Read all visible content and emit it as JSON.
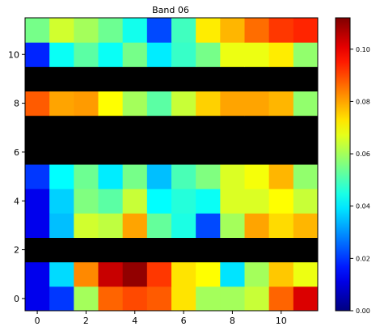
{
  "chart_data": {
    "type": "heatmap",
    "title": "Band 06",
    "xlabel": "",
    "ylabel": "",
    "colormap": "jet",
    "origin": "lower",
    "grid": false,
    "x_ticks": [
      0,
      2,
      4,
      6,
      8,
      10
    ],
    "y_ticks": [
      0,
      2,
      4,
      6,
      8,
      10
    ],
    "colorbar": {
      "vmin": 0.0,
      "vmax": 0.112,
      "ticks": [
        0.0,
        0.02,
        0.04,
        0.06,
        0.08,
        0.1
      ],
      "tick_labels": [
        "0.00",
        "0.02",
        "0.04",
        "0.06",
        "0.08",
        "0.10"
      ]
    },
    "masked_rows": [
      2,
      6,
      7,
      9
    ],
    "masked_color": "#000000",
    "values": [
      [
        0.012,
        0.02,
        0.06,
        0.087,
        0.09,
        0.088,
        0.073,
        0.06,
        0.06,
        0.064,
        0.087,
        0.102
      ],
      [
        0.012,
        0.038,
        0.083,
        0.104,
        0.11,
        0.092,
        0.073,
        0.07,
        0.039,
        0.06,
        0.076,
        0.068
      ],
      null,
      [
        0.012,
        0.035,
        0.065,
        0.063,
        0.08,
        0.053,
        0.045,
        0.022,
        0.06,
        0.08,
        0.074,
        0.078
      ],
      [
        0.012,
        0.037,
        0.056,
        0.052,
        0.064,
        0.042,
        0.046,
        0.043,
        0.066,
        0.066,
        0.07,
        0.064
      ],
      [
        0.02,
        0.042,
        0.054,
        0.04,
        0.055,
        0.035,
        0.05,
        0.056,
        0.066,
        0.069,
        0.078,
        0.058
      ],
      null,
      null,
      [
        0.088,
        0.08,
        0.081,
        0.07,
        0.06,
        0.052,
        0.064,
        0.075,
        0.08,
        0.08,
        0.078,
        0.058
      ],
      null,
      [
        0.018,
        0.043,
        0.052,
        0.043,
        0.055,
        0.04,
        0.048,
        0.055,
        0.068,
        0.068,
        0.072,
        0.058
      ],
      [
        0.055,
        0.065,
        0.06,
        0.054,
        0.044,
        0.022,
        0.049,
        0.072,
        0.078,
        0.086,
        0.092,
        0.094
      ]
    ]
  }
}
